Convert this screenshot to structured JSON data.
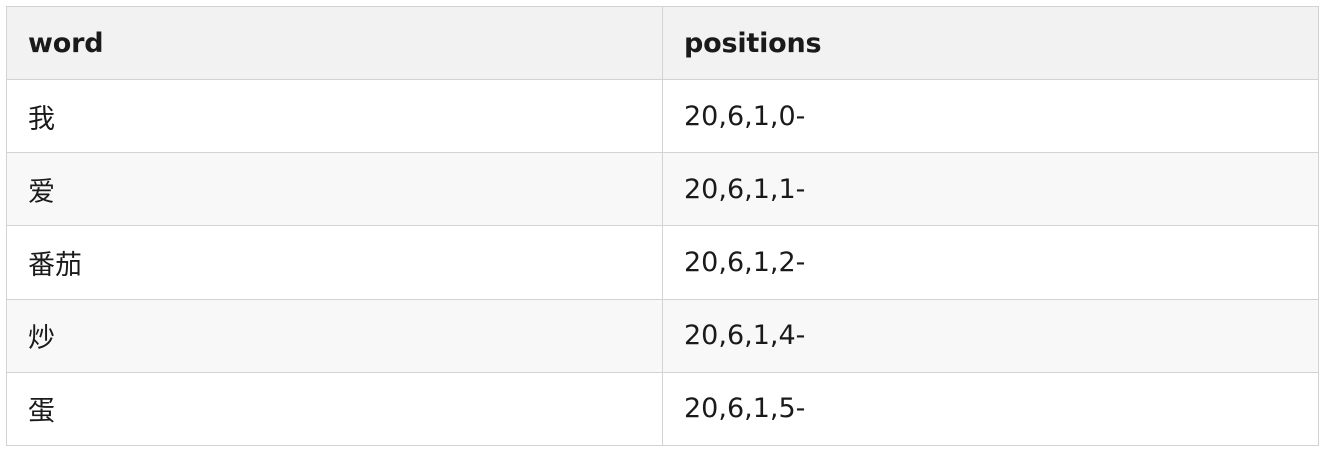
{
  "table": {
    "headers": {
      "word": "word",
      "positions": "positions"
    },
    "rows": [
      {
        "word": "我",
        "positions": "20,6,1,0-"
      },
      {
        "word": "爱",
        "positions": "20,6,1,1-"
      },
      {
        "word": "番茄",
        "positions": "20,6,1,2-"
      },
      {
        "word": "炒",
        "positions": "20,6,1,4-"
      },
      {
        "word": "蛋",
        "positions": "20,6,1,5-"
      }
    ]
  }
}
